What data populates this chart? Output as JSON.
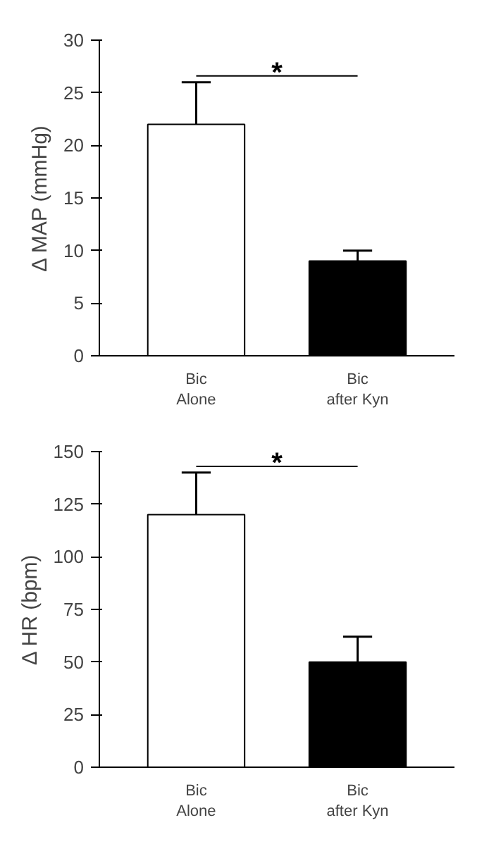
{
  "chart_data": [
    {
      "type": "bar",
      "ylabel": "Δ MAP (mmHg)",
      "categories": [
        "Bic\nAlone",
        "Bic\nafter Kyn"
      ],
      "values": [
        22,
        9
      ],
      "colors": [
        "#ffffff",
        "#000000"
      ],
      "errors": [
        [
          22,
          26
        ],
        [
          9,
          10
        ]
      ],
      "ylim": [
        0,
        30
      ],
      "yticks": [
        0,
        5,
        10,
        15,
        20,
        25,
        30
      ],
      "grid": false,
      "annotations": [
        "*"
      ]
    },
    {
      "type": "bar",
      "ylabel": "Δ HR (bpm)",
      "categories": [
        "Bic\nAlone",
        "Bic\nafter Kyn"
      ],
      "values": [
        120,
        50
      ],
      "colors": [
        "#ffffff",
        "#000000"
      ],
      "errors": [
        [
          120,
          140
        ],
        [
          50,
          62
        ]
      ],
      "ylim": [
        0,
        150
      ],
      "yticks": [
        0,
        25,
        50,
        75,
        100,
        125,
        150
      ],
      "grid": false,
      "annotations": [
        "*"
      ]
    }
  ]
}
